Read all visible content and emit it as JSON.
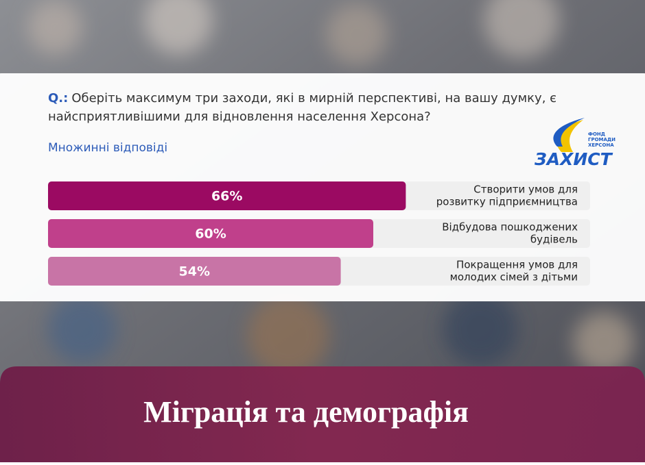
{
  "chart_data": {
    "type": "bar",
    "question_prefix": "Q.:",
    "title": [
      "Оберіть максимум три заходи, які в мирній перспективі, на вашу думку, є",
      "найсприятливішими для відновлення населення Херсона?"
    ],
    "subtitle": "Множинні відповіді",
    "logo": {
      "fund": [
        "ФОНД",
        "ГРОМАДИ",
        "ХЕРСОНА"
      ],
      "name": "ЗАХИСТ"
    },
    "categories": [
      [
        "Створити умов для",
        "розвитку підприємництва"
      ],
      [
        "Відбудова пошкоджених",
        "будівель"
      ],
      [
        "Покращення умов для",
        "молодих сімей з дітьми"
      ]
    ],
    "values": [
      66,
      60,
      54
    ],
    "value_labels": [
      "66%",
      "60%",
      "54%"
    ],
    "colors": [
      "#9b0a62",
      "#c0408b",
      "#c874a6"
    ],
    "xlim": [
      0,
      100
    ],
    "section_title": "Міграція та демографія"
  }
}
